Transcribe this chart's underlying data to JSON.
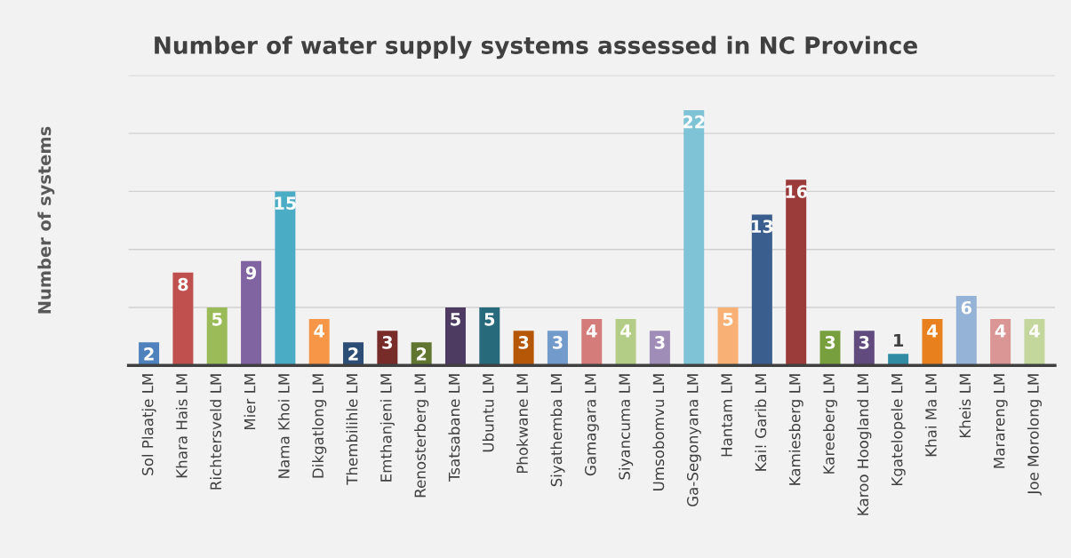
{
  "chart_data": {
    "type": "bar",
    "title": "Number of water supply systems assessed in NC Province",
    "ylabel": "Number of systems",
    "categories": [
      "Sol Plaatje LM",
      "Khara Hais LM",
      "Richtersveld LM",
      "Mier LM",
      "Nama Khoi LM",
      "Dikgatlong LM",
      "Thembilihle LM",
      "Emthanjeni LM",
      "Renosterberg LM",
      "Tsatsabane LM",
      "Ubuntu LM",
      "Phokwane LM",
      "Siyathemba LM",
      "Gamagara LM",
      "Siyancuma LM",
      "Umsobomvu LM",
      "Ga-Segonyana LM",
      "Hantam LM",
      "Kai! Garib LM",
      "Kamiesberg LM",
      "Kareeberg LM",
      "Karoo Hoogland LM",
      "Kgatelopele LM",
      "Khai Ma LM",
      "Kheis LM",
      "Marareng LM",
      "Joe Morolong LM"
    ],
    "values": [
      2,
      8,
      5,
      9,
      15,
      4,
      2,
      3,
      2,
      5,
      5,
      3,
      3,
      4,
      4,
      3,
      22,
      5,
      13,
      16,
      3,
      3,
      1,
      4,
      6,
      4,
      4
    ],
    "colors": [
      "#4f81bd",
      "#c0504d",
      "#9bbb59",
      "#8064a2",
      "#4bacc6",
      "#f79646",
      "#2c4d75",
      "#772c2a",
      "#5f7530",
      "#4d3b62",
      "#276a7c",
      "#b65708",
      "#729aca",
      "#d37c7a",
      "#b3cd86",
      "#a08db7",
      "#7ec4d6",
      "#f9b074",
      "#3a5f8f",
      "#9b3c3a",
      "#789f3e",
      "#614a7e",
      "#318ca3",
      "#e8801e",
      "#95b3d7",
      "#d99694",
      "#c3d69b"
    ],
    "ylim": [
      0,
      25
    ],
    "yticks": [
      {
        "value": 0,
        "label": null
      },
      {
        "value": 5,
        "label": null
      },
      {
        "value": 10,
        "label": null
      },
      {
        "value": 15,
        "label": null
      },
      {
        "value": 20,
        "label": null
      },
      {
        "value": 25,
        "label": null
      }
    ],
    "tick_labels": "x",
    "grid": "y",
    "data_labels": true
  }
}
